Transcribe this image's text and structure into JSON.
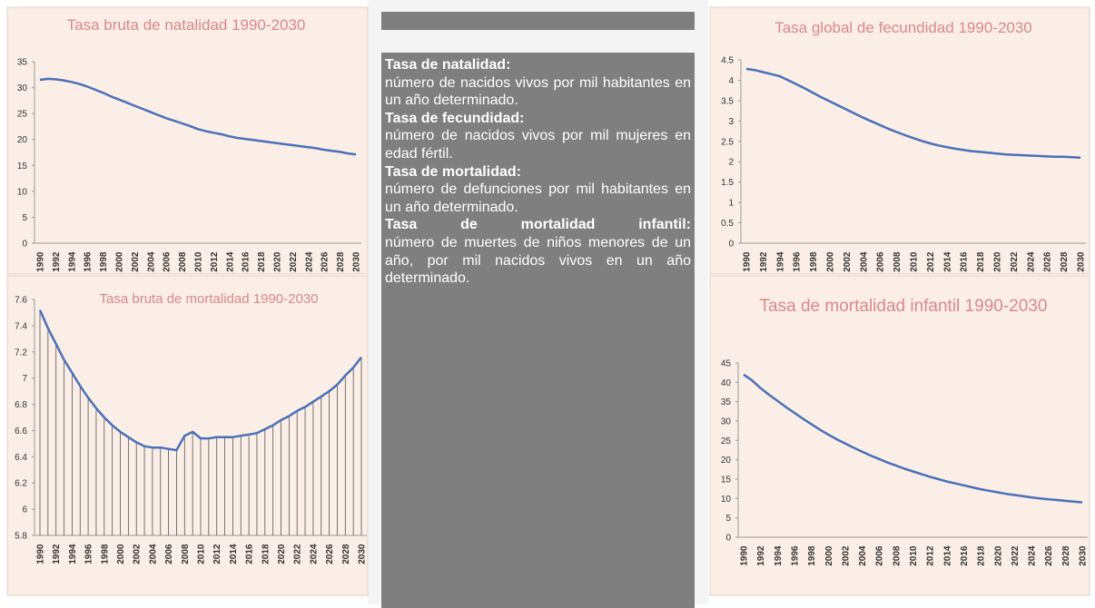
{
  "chart_data": [
    {
      "type": "line",
      "title": "Tasa bruta de natalidad 1990-2030",
      "categories": [
        "1990",
        null,
        "1992",
        null,
        "1994",
        null,
        "1996",
        null,
        "1998",
        null,
        "2000",
        null,
        "2002",
        null,
        "2004",
        null,
        "2006",
        null,
        "2008",
        null,
        "2010",
        null,
        "2012",
        null,
        "2014",
        null,
        "2016",
        null,
        "2018",
        null,
        "2020",
        null,
        "2022",
        null,
        "2024",
        null,
        "2026",
        null,
        "2028",
        null,
        "2030"
      ],
      "values": [
        31.5,
        31.7,
        31.6,
        31.4,
        31.1,
        30.7,
        30.2,
        29.6,
        29.0,
        28.3,
        27.7,
        27.1,
        26.5,
        25.9,
        25.3,
        24.7,
        24.1,
        23.6,
        23.1,
        22.6,
        22.0,
        21.6,
        21.3,
        21.0,
        20.6,
        20.3,
        20.1,
        19.9,
        19.7,
        19.5,
        19.3,
        19.1,
        18.9,
        18.7,
        18.5,
        18.3,
        18.0,
        17.8,
        17.6,
        17.3,
        17.1
      ],
      "color": "#4a70b8",
      "ylim": [
        0,
        35
      ],
      "yticks": [
        0,
        5,
        10,
        15,
        20,
        25,
        30,
        35
      ],
      "grid": false,
      "drop_lines": false
    },
    {
      "type": "line",
      "title": "Tasa global de fecundidad 1990-2030",
      "categories": [
        "1990",
        null,
        "1992",
        null,
        "1994",
        null,
        "1996",
        null,
        "1998",
        null,
        "2000",
        null,
        "2002",
        null,
        "2004",
        null,
        "2006",
        null,
        "2008",
        null,
        "2010",
        null,
        "2012",
        null,
        "2014",
        null,
        "2016",
        null,
        "2018",
        null,
        "2020",
        null,
        "2022",
        null,
        "2024",
        null,
        "2026",
        null,
        "2028",
        null,
        "2030"
      ],
      "values": [
        4.28,
        4.25,
        4.2,
        4.15,
        4.1,
        4.0,
        3.9,
        3.8,
        3.69,
        3.58,
        3.48,
        3.38,
        3.28,
        3.18,
        3.08,
        2.99,
        2.9,
        2.81,
        2.73,
        2.65,
        2.58,
        2.51,
        2.45,
        2.4,
        2.36,
        2.32,
        2.29,
        2.26,
        2.24,
        2.22,
        2.2,
        2.18,
        2.17,
        2.16,
        2.15,
        2.14,
        2.13,
        2.12,
        2.12,
        2.11,
        2.1
      ],
      "color": "#4a70b8",
      "ylim": [
        0,
        4.5
      ],
      "yticks": [
        0,
        0.5,
        1,
        1.5,
        2,
        2.5,
        3,
        3.5,
        4,
        4.5
      ],
      "grid": false,
      "drop_lines": false
    },
    {
      "type": "line",
      "title": "Tasa bruta de mortalidad 1990-2030",
      "categories": [
        "1990",
        null,
        "1992",
        null,
        "1994",
        null,
        "1996",
        null,
        "1998",
        null,
        "2000",
        null,
        "2002",
        null,
        "2004",
        null,
        "2006",
        null,
        "2008",
        null,
        "2010",
        null,
        "2012",
        null,
        "2014",
        null,
        "2016",
        null,
        "2018",
        null,
        "2020",
        null,
        "2022",
        null,
        "2024",
        null,
        "2026",
        null,
        "2028",
        null,
        "2030"
      ],
      "values": [
        7.52,
        7.38,
        7.26,
        7.14,
        7.04,
        6.94,
        6.85,
        6.77,
        6.7,
        6.64,
        6.59,
        6.55,
        6.51,
        6.48,
        6.47,
        6.47,
        6.46,
        6.45,
        6.56,
        6.59,
        6.54,
        6.54,
        6.55,
        6.55,
        6.55,
        6.56,
        6.57,
        6.58,
        6.61,
        6.64,
        6.68,
        6.71,
        6.75,
        6.78,
        6.82,
        6.86,
        6.9,
        6.95,
        7.02,
        7.08,
        7.16
      ],
      "color": "#4a70b8",
      "ylim": [
        5.8,
        7.6
      ],
      "yticks": [
        5.8,
        6,
        6.2,
        6.4,
        6.6,
        6.8,
        7,
        7.2,
        7.4,
        7.6
      ],
      "grid": false,
      "drop_lines": true
    },
    {
      "type": "line",
      "title": "Tasa de mortalidad infantil 1990-2030",
      "categories": [
        "1990",
        null,
        "1992",
        null,
        "1994",
        null,
        "1996",
        null,
        "1998",
        null,
        "2000",
        null,
        "2002",
        null,
        "2004",
        null,
        "2006",
        null,
        "2008",
        null,
        "2010",
        null,
        "2012",
        null,
        "2014",
        null,
        "2016",
        null,
        "2018",
        null,
        "2020",
        null,
        "2022",
        null,
        "2024",
        null,
        "2026",
        null,
        "2028",
        null,
        "2030"
      ],
      "values": [
        42,
        40.5,
        38.5,
        36.8,
        35.2,
        33.6,
        32.1,
        30.6,
        29.2,
        27.8,
        26.5,
        25.3,
        24.2,
        23.1,
        22.1,
        21.1,
        20.2,
        19.3,
        18.5,
        17.7,
        17.0,
        16.3,
        15.6,
        15.0,
        14.4,
        13.9,
        13.4,
        12.9,
        12.4,
        12.0,
        11.6,
        11.2,
        10.9,
        10.6,
        10.3,
        10.0,
        9.8,
        9.6,
        9.4,
        9.2,
        9.0
      ],
      "color": "#4a70b8",
      "ylim": [
        0,
        45
      ],
      "yticks": [
        0,
        5,
        10,
        15,
        20,
        25,
        30,
        35,
        40,
        45
      ],
      "grid": false,
      "drop_lines": false
    }
  ],
  "definitions": [
    {
      "term": "Tasa de natalidad:",
      "text": "número de nacidos vivos por mil habitantes en un año determinado."
    },
    {
      "term": "Tasa de fecundidad:",
      "text": "número de nacidos vivos por mil mujeres en edad fértil."
    },
    {
      "term": "Tasa de mortalidad:",
      "text": "número de defunciones por mil habitantes en un año determinado."
    },
    {
      "term": "Tasa de mortalidad infantil:",
      "text": "número de muertes de niños menores de un año, por mil nacidos vivos en un año determinado."
    }
  ]
}
